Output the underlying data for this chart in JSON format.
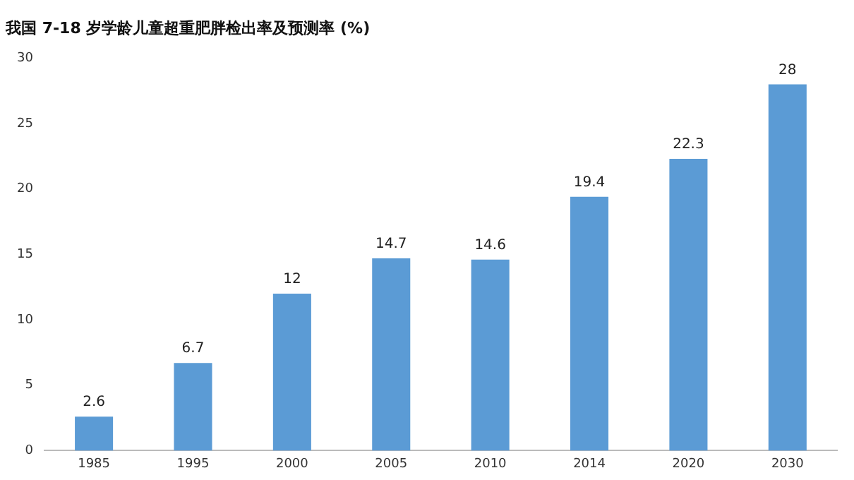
{
  "chart_data": {
    "type": "bar",
    "title": "我国 7-18 岁学龄儿童超重肥胖检出率及预测率 (%)",
    "categories": [
      "1985",
      "1995",
      "2000",
      "2005",
      "2010",
      "2014",
      "2020",
      "2030"
    ],
    "values": [
      2.6,
      6.7,
      12,
      14.7,
      14.6,
      19.4,
      22.3,
      28
    ],
    "color": "#5b9bd5",
    "ylim": [
      0,
      30
    ],
    "yticks": [
      0,
      5,
      10,
      15,
      20,
      25,
      30
    ],
    "grid": false,
    "legend": false,
    "data_labels": true
  }
}
